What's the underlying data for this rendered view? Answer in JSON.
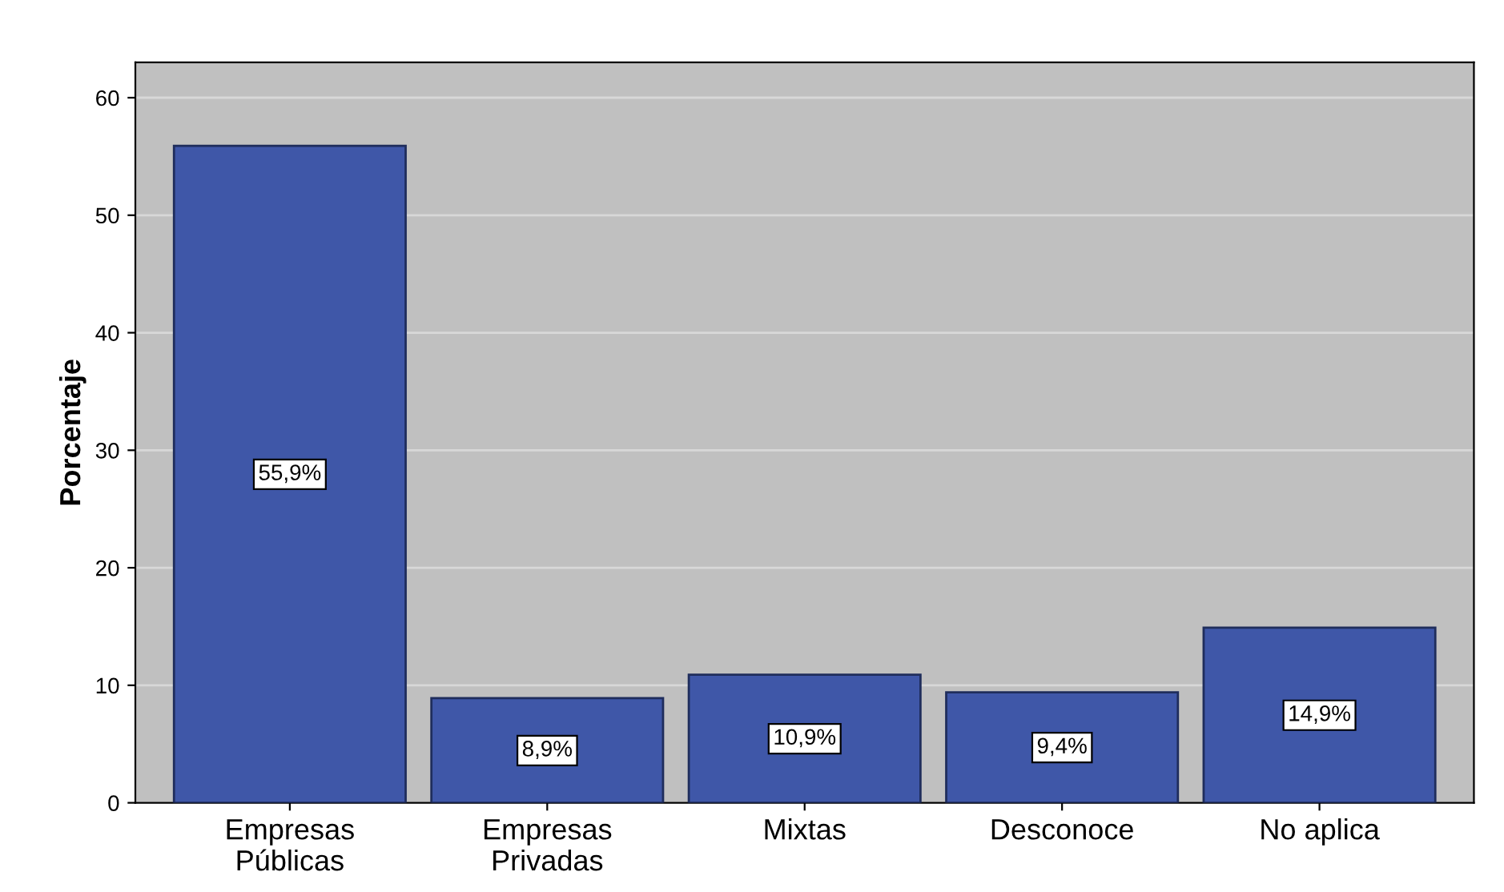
{
  "chart_data": {
    "type": "bar",
    "ylabel": "Porcentaje",
    "categories": [
      "Empresas\nPúblicas",
      "Empresas\nPrivadas",
      "Mixtas",
      "Desconoce",
      "No aplica"
    ],
    "values": [
      55.9,
      8.9,
      10.9,
      9.4,
      14.9
    ],
    "value_labels": [
      "55,9%",
      "8,9%",
      "10,9%",
      "9,4%",
      "14,9%"
    ],
    "color": "#3f57a8",
    "ylim": [
      0,
      63
    ],
    "yticks": [
      0,
      10,
      20,
      30,
      40,
      50,
      60
    ],
    "grid": "y"
  }
}
